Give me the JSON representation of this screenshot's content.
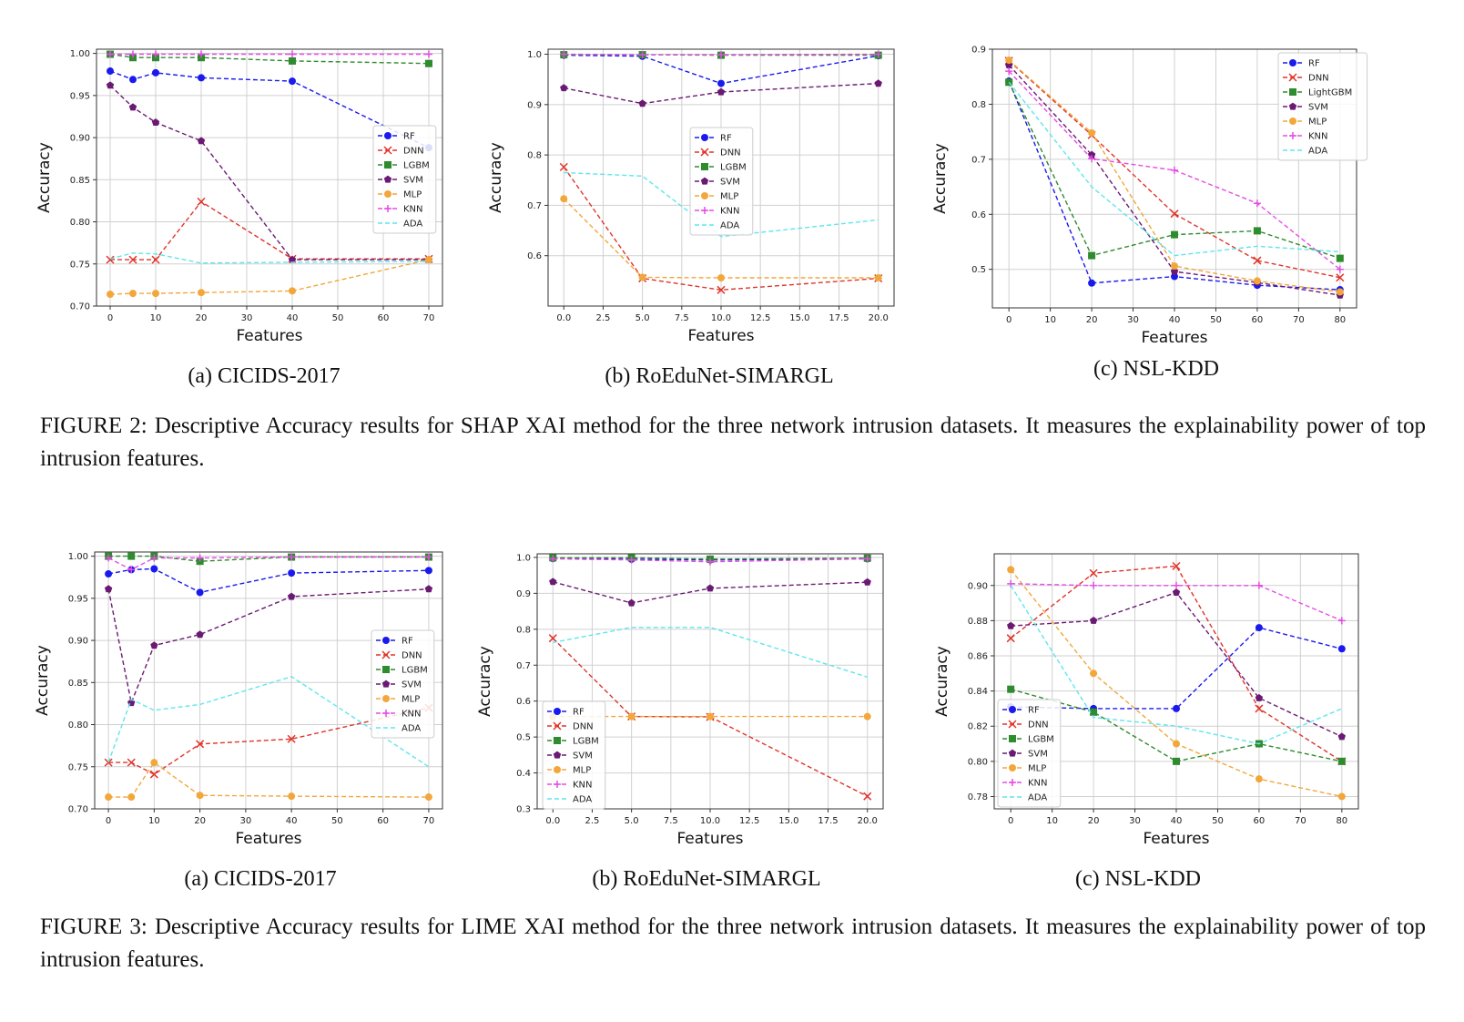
{
  "colors": {
    "RF": "#1a1aee",
    "DNN": "#e0342a",
    "LGBM": "#2e8b2e",
    "LightGBM": "#2e8b2e",
    "SVM": "#6b1a74",
    "MLP": "#f2a73b",
    "KNN": "#e54ce5",
    "ADA": "#5ee6ee"
  },
  "markers": {
    "RF": "circle",
    "DNN": "x",
    "LGBM": "square",
    "LightGBM": "square",
    "SVM": "pentagon",
    "MLP": "circle",
    "KNN": "plus",
    "ADA": "none"
  },
  "figures": [
    {
      "id": "fig2",
      "caption": "FIGURE 2: Descriptive Accuracy results for SHAP XAI method for the three network intrusion datasets. It measures the explainability power of top intrusion features."
    },
    {
      "id": "fig3",
      "caption": "FIGURE 3: Descriptive Accuracy results for LIME XAI method for the three network intrusion datasets. It measures the explainability power of top intrusion features."
    }
  ],
  "chart_data": [
    {
      "id": "f2a",
      "type": "line",
      "subcaption": "(a) CICIDS-2017",
      "xlabel": "Features",
      "ylabel": "Accuracy",
      "xlim": [
        -3,
        73
      ],
      "ylim": [
        0.7,
        1.005
      ],
      "xticks": [
        0,
        10,
        20,
        30,
        40,
        50,
        60,
        70
      ],
      "xtick_labels": [
        "0",
        "10",
        "20",
        "30",
        "40",
        "50",
        "60",
        "70"
      ],
      "yticks": [
        0.7,
        0.75,
        0.8,
        0.85,
        0.9,
        0.95,
        1.0
      ],
      "ytick_labels": [
        "0.70",
        "0.75",
        "0.80",
        "0.85",
        "0.90",
        "0.95",
        "1.00"
      ],
      "grid": true,
      "legend_position": "center-right",
      "series": [
        {
          "name": "RF",
          "x": [
            0,
            5,
            10,
            20,
            40,
            70
          ],
          "y": [
            0.979,
            0.969,
            0.977,
            0.971,
            0.967,
            0.888
          ]
        },
        {
          "name": "DNN",
          "x": [
            0,
            5,
            10,
            20,
            40,
            70
          ],
          "y": [
            0.755,
            0.755,
            0.755,
            0.824,
            0.756,
            0.756
          ]
        },
        {
          "name": "LGBM",
          "x": [
            0,
            5,
            10,
            20,
            40,
            70
          ],
          "y": [
            0.999,
            0.995,
            0.995,
            0.995,
            0.991,
            0.988
          ]
        },
        {
          "name": "SVM",
          "x": [
            0,
            5,
            10,
            20,
            40,
            70
          ],
          "y": [
            0.962,
            0.936,
            0.918,
            0.896,
            0.755,
            0.755
          ]
        },
        {
          "name": "MLP",
          "x": [
            0,
            5,
            10,
            20,
            40,
            70
          ],
          "y": [
            0.714,
            0.715,
            0.715,
            0.716,
            0.718,
            0.755
          ]
        },
        {
          "name": "KNN",
          "x": [
            0,
            5,
            10,
            20,
            40,
            70
          ],
          "y": [
            0.999,
            0.999,
            0.999,
            0.999,
            0.999,
            0.999
          ]
        },
        {
          "name": "ADA",
          "x": [
            0,
            5,
            10,
            20,
            40,
            70
          ],
          "y": [
            0.756,
            0.763,
            0.762,
            0.751,
            0.752,
            0.753
          ]
        }
      ]
    },
    {
      "id": "f2b",
      "type": "line",
      "subcaption": "(b) RoEduNet-SIMARGL",
      "xlabel": "Features",
      "ylabel": "Accuracy",
      "xlim": [
        -1,
        21
      ],
      "ylim": [
        0.5,
        1.01
      ],
      "xticks": [
        0,
        2.5,
        5,
        7.5,
        10,
        12.5,
        15,
        17.5,
        20
      ],
      "xtick_labels": [
        "0.0",
        "2.5",
        "5.0",
        "7.5",
        "10.0",
        "12.5",
        "15.0",
        "17.5",
        "20.0"
      ],
      "yticks": [
        0.6,
        0.7,
        0.8,
        0.9,
        1.0
      ],
      "ytick_labels": [
        "0.6",
        "0.7",
        "0.8",
        "0.9",
        "1.0"
      ],
      "grid": true,
      "legend_position": "center",
      "series": [
        {
          "name": "RF",
          "x": [
            0,
            5,
            10,
            20
          ],
          "y": [
            0.998,
            0.996,
            0.942,
            0.997
          ]
        },
        {
          "name": "DNN",
          "x": [
            0,
            5,
            10,
            20
          ],
          "y": [
            0.776,
            0.555,
            0.532,
            0.555
          ]
        },
        {
          "name": "LGBM",
          "x": [
            0,
            5,
            10,
            20
          ],
          "y": [
            0.999,
            0.999,
            0.998,
            0.998
          ]
        },
        {
          "name": "SVM",
          "x": [
            0,
            5,
            10,
            20
          ],
          "y": [
            0.933,
            0.902,
            0.925,
            0.942
          ]
        },
        {
          "name": "MLP",
          "x": [
            0,
            5,
            10,
            20
          ],
          "y": [
            0.713,
            0.557,
            0.556,
            0.556
          ]
        },
        {
          "name": "KNN",
          "x": [
            0,
            5,
            10,
            20
          ],
          "y": [
            1.0,
            0.999,
            0.999,
            1.0
          ]
        },
        {
          "name": "ADA",
          "x": [
            0,
            5,
            10,
            20
          ],
          "y": [
            0.765,
            0.758,
            0.638,
            0.671
          ]
        }
      ]
    },
    {
      "id": "f2c",
      "type": "line",
      "subcaption": "(c) NSL-KDD",
      "xlabel": "Features",
      "ylabel": "Accuracy",
      "xlim": [
        -4,
        84
      ],
      "ylim": [
        0.43,
        0.9
      ],
      "xticks": [
        0,
        10,
        20,
        30,
        40,
        50,
        60,
        70,
        80
      ],
      "xtick_labels": [
        "0",
        "10",
        "20",
        "30",
        "40",
        "50",
        "60",
        "70",
        "80"
      ],
      "yticks": [
        0.5,
        0.6,
        0.7,
        0.8,
        0.9
      ],
      "ytick_labels": [
        "0.5",
        "0.6",
        "0.7",
        "0.8",
        "0.9"
      ],
      "grid": true,
      "legend_position": "top-right",
      "series": [
        {
          "name": "RF",
          "x": [
            0,
            20,
            40,
            60,
            80
          ],
          "y": [
            0.842,
            0.475,
            0.487,
            0.471,
            0.463
          ]
        },
        {
          "name": "DNN",
          "x": [
            0,
            20,
            40,
            60,
            80
          ],
          "y": [
            0.879,
            0.744,
            0.601,
            0.516,
            0.485
          ]
        },
        {
          "name": "LightGBM",
          "x": [
            0,
            20,
            40,
            60,
            80
          ],
          "y": [
            0.84,
            0.525,
            0.563,
            0.57,
            0.52
          ]
        },
        {
          "name": "SVM",
          "x": [
            0,
            20,
            40,
            60,
            80
          ],
          "y": [
            0.871,
            0.708,
            0.496,
            0.476,
            0.453
          ]
        },
        {
          "name": "MLP",
          "x": [
            0,
            20,
            40,
            60,
            80
          ],
          "y": [
            0.88,
            0.748,
            0.506,
            0.479,
            0.459
          ]
        },
        {
          "name": "KNN",
          "x": [
            0,
            20,
            40,
            60,
            80
          ],
          "y": [
            0.86,
            0.701,
            0.68,
            0.62,
            0.5
          ]
        },
        {
          "name": "ADA",
          "x": [
            0,
            20,
            40,
            60,
            80
          ],
          "y": [
            0.84,
            0.65,
            0.525,
            0.542,
            0.532
          ]
        }
      ]
    },
    {
      "id": "f3a",
      "type": "line",
      "subcaption": "(a) CICIDS-2017",
      "xlabel": "Features",
      "ylabel": "Accuracy",
      "xlim": [
        -3,
        73
      ],
      "ylim": [
        0.7,
        1.005
      ],
      "xticks": [
        0,
        10,
        20,
        30,
        40,
        50,
        60,
        70
      ],
      "xtick_labels": [
        "0",
        "10",
        "20",
        "30",
        "40",
        "50",
        "60",
        "70"
      ],
      "yticks": [
        0.7,
        0.75,
        0.8,
        0.85,
        0.9,
        0.95,
        1.0
      ],
      "ytick_labels": [
        "0.70",
        "0.75",
        "0.80",
        "0.85",
        "0.90",
        "0.95",
        "1.00"
      ],
      "grid": true,
      "legend_position": "center-right",
      "series": [
        {
          "name": "RF",
          "x": [
            0,
            5,
            10,
            20,
            40,
            70
          ],
          "y": [
            0.979,
            0.984,
            0.985,
            0.957,
            0.98,
            0.983
          ]
        },
        {
          "name": "DNN",
          "x": [
            0,
            5,
            10,
            20,
            40,
            70
          ],
          "y": [
            0.755,
            0.755,
            0.741,
            0.777,
            0.783,
            0.82
          ]
        },
        {
          "name": "LGBM",
          "x": [
            0,
            5,
            10,
            20,
            40,
            70
          ],
          "y": [
            1.0,
            1.0,
            1.0,
            0.994,
            0.999,
            0.999
          ]
        },
        {
          "name": "SVM",
          "x": [
            0,
            5,
            10,
            20,
            40,
            70
          ],
          "y": [
            0.961,
            0.826,
            0.894,
            0.907,
            0.952,
            0.961
          ]
        },
        {
          "name": "MLP",
          "x": [
            0,
            5,
            10,
            20,
            40,
            70
          ],
          "y": [
            0.714,
            0.714,
            0.755,
            0.716,
            0.715,
            0.714
          ]
        },
        {
          "name": "KNN",
          "x": [
            0,
            5,
            10,
            20,
            40,
            70
          ],
          "y": [
            0.998,
            0.984,
            0.998,
            0.998,
            0.999,
            0.999
          ]
        },
        {
          "name": "ADA",
          "x": [
            0,
            5,
            10,
            20,
            40,
            70
          ],
          "y": [
            0.755,
            0.83,
            0.817,
            0.824,
            0.857,
            0.75
          ]
        }
      ]
    },
    {
      "id": "f3b",
      "type": "line",
      "subcaption": "(b) RoEduNet-SIMARGL",
      "xlabel": "Features",
      "ylabel": "Accuracy",
      "xlim": [
        -1,
        21
      ],
      "ylim": [
        0.3,
        1.01
      ],
      "xticks": [
        0,
        2.5,
        5,
        7.5,
        10,
        12.5,
        15,
        17.5,
        20
      ],
      "xtick_labels": [
        "0.0",
        "2.5",
        "5.0",
        "7.5",
        "10.0",
        "12.5",
        "15.0",
        "17.5",
        "20.0"
      ],
      "yticks": [
        0.3,
        0.4,
        0.5,
        0.6,
        0.7,
        0.8,
        0.9,
        1.0
      ],
      "ytick_labels": [
        "0.3",
        "0.4",
        "0.5",
        "0.6",
        "0.7",
        "0.8",
        "0.9",
        "1.0"
      ],
      "grid": true,
      "legend_position": "lower-left",
      "series": [
        {
          "name": "RF",
          "x": [
            0,
            5,
            10,
            20
          ],
          "y": [
            0.997,
            0.995,
            0.993,
            0.996
          ]
        },
        {
          "name": "DNN",
          "x": [
            0,
            5,
            10,
            20
          ],
          "y": [
            0.775,
            0.557,
            0.556,
            0.335
          ]
        },
        {
          "name": "LGBM",
          "x": [
            0,
            5,
            10,
            20
          ],
          "y": [
            0.999,
            0.999,
            0.995,
            0.998
          ]
        },
        {
          "name": "SVM",
          "x": [
            0,
            5,
            10,
            20
          ],
          "y": [
            0.932,
            0.873,
            0.914,
            0.931
          ]
        },
        {
          "name": "MLP",
          "x": [
            0,
            5,
            10,
            20
          ],
          "y": [
            0.557,
            0.557,
            0.557,
            0.557
          ]
        },
        {
          "name": "KNN",
          "x": [
            0,
            5,
            10,
            20
          ],
          "y": [
            0.996,
            0.993,
            0.988,
            0.996
          ]
        },
        {
          "name": "ADA",
          "x": [
            0,
            5,
            10,
            20
          ],
          "y": [
            0.763,
            0.805,
            0.805,
            0.667
          ]
        }
      ]
    },
    {
      "id": "f3c",
      "type": "line",
      "subcaption": "(c) NSL-KDD",
      "xlabel": "Features",
      "ylabel": "Accuracy",
      "xlim": [
        -4,
        84
      ],
      "ylim": [
        0.773,
        0.918
      ],
      "xticks": [
        0,
        10,
        20,
        30,
        40,
        50,
        60,
        70,
        80
      ],
      "xtick_labels": [
        "0",
        "10",
        "20",
        "30",
        "40",
        "50",
        "60",
        "70",
        "80"
      ],
      "yticks": [
        0.78,
        0.8,
        0.82,
        0.84,
        0.86,
        0.88,
        0.9
      ],
      "ytick_labels": [
        "0.78",
        "0.80",
        "0.82",
        "0.84",
        "0.86",
        "0.88",
        "0.90"
      ],
      "grid": true,
      "legend_position": "lower-left",
      "series": [
        {
          "name": "RF",
          "x": [
            0,
            20,
            40,
            60,
            80
          ],
          "y": [
            0.831,
            0.83,
            0.83,
            0.876,
            0.864
          ]
        },
        {
          "name": "DNN",
          "x": [
            0,
            20,
            40,
            60,
            80
          ],
          "y": [
            0.87,
            0.907,
            0.911,
            0.83,
            0.8
          ]
        },
        {
          "name": "LGBM",
          "x": [
            0,
            20,
            40,
            60,
            80
          ],
          "y": [
            0.841,
            0.828,
            0.8,
            0.81,
            0.8
          ]
        },
        {
          "name": "SVM",
          "x": [
            0,
            20,
            40,
            60,
            80
          ],
          "y": [
            0.877,
            0.88,
            0.896,
            0.836,
            0.814
          ]
        },
        {
          "name": "MLP",
          "x": [
            0,
            20,
            40,
            60,
            80
          ],
          "y": [
            0.909,
            0.85,
            0.81,
            0.79,
            0.78
          ]
        },
        {
          "name": "KNN",
          "x": [
            0,
            20,
            40,
            60,
            80
          ],
          "y": [
            0.901,
            0.9,
            0.9,
            0.9,
            0.88
          ]
        },
        {
          "name": "ADA",
          "x": [
            0,
            20,
            40,
            60,
            80
          ],
          "y": [
            0.9,
            0.825,
            0.82,
            0.81,
            0.83
          ]
        }
      ]
    }
  ]
}
